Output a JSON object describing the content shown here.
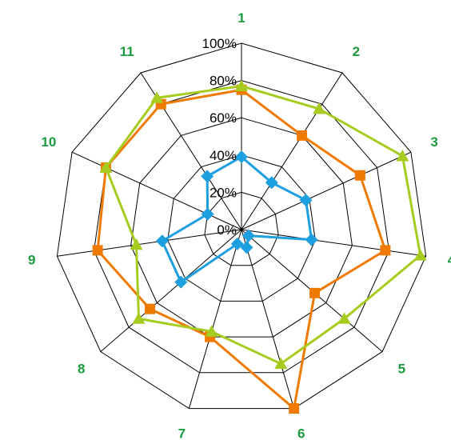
{
  "chart_data": {
    "type": "radar",
    "categories": [
      "1",
      "2",
      "3",
      "4",
      "5",
      "6",
      "7",
      "8",
      "9",
      "10",
      "11"
    ],
    "rlim": [
      0,
      100
    ],
    "ticks": [
      "0%",
      "20%",
      "40%",
      "60%",
      "80%",
      "100%"
    ],
    "tick_values": [
      0,
      20,
      40,
      60,
      80,
      100
    ],
    "grid": true,
    "series": [
      {
        "values": [
          39,
          30,
          38,
          38,
          5,
          10,
          8,
          43,
          43,
          20,
          34
        ],
        "color": "#1e9fe0",
        "marker": "diamond"
      },
      {
        "values": [
          75,
          60,
          70,
          78,
          52,
          100,
          60,
          65,
          78,
          80,
          80
        ],
        "color": "#f07a00",
        "marker": "square"
      },
      {
        "values": [
          77,
          77,
          95,
          97,
          73,
          75,
          57,
          73,
          57,
          80,
          84
        ],
        "color": "#a5cc1e",
        "marker": "triangle"
      }
    ],
    "category_label_color": "#1a9c3e",
    "grid_color": "#000000"
  }
}
